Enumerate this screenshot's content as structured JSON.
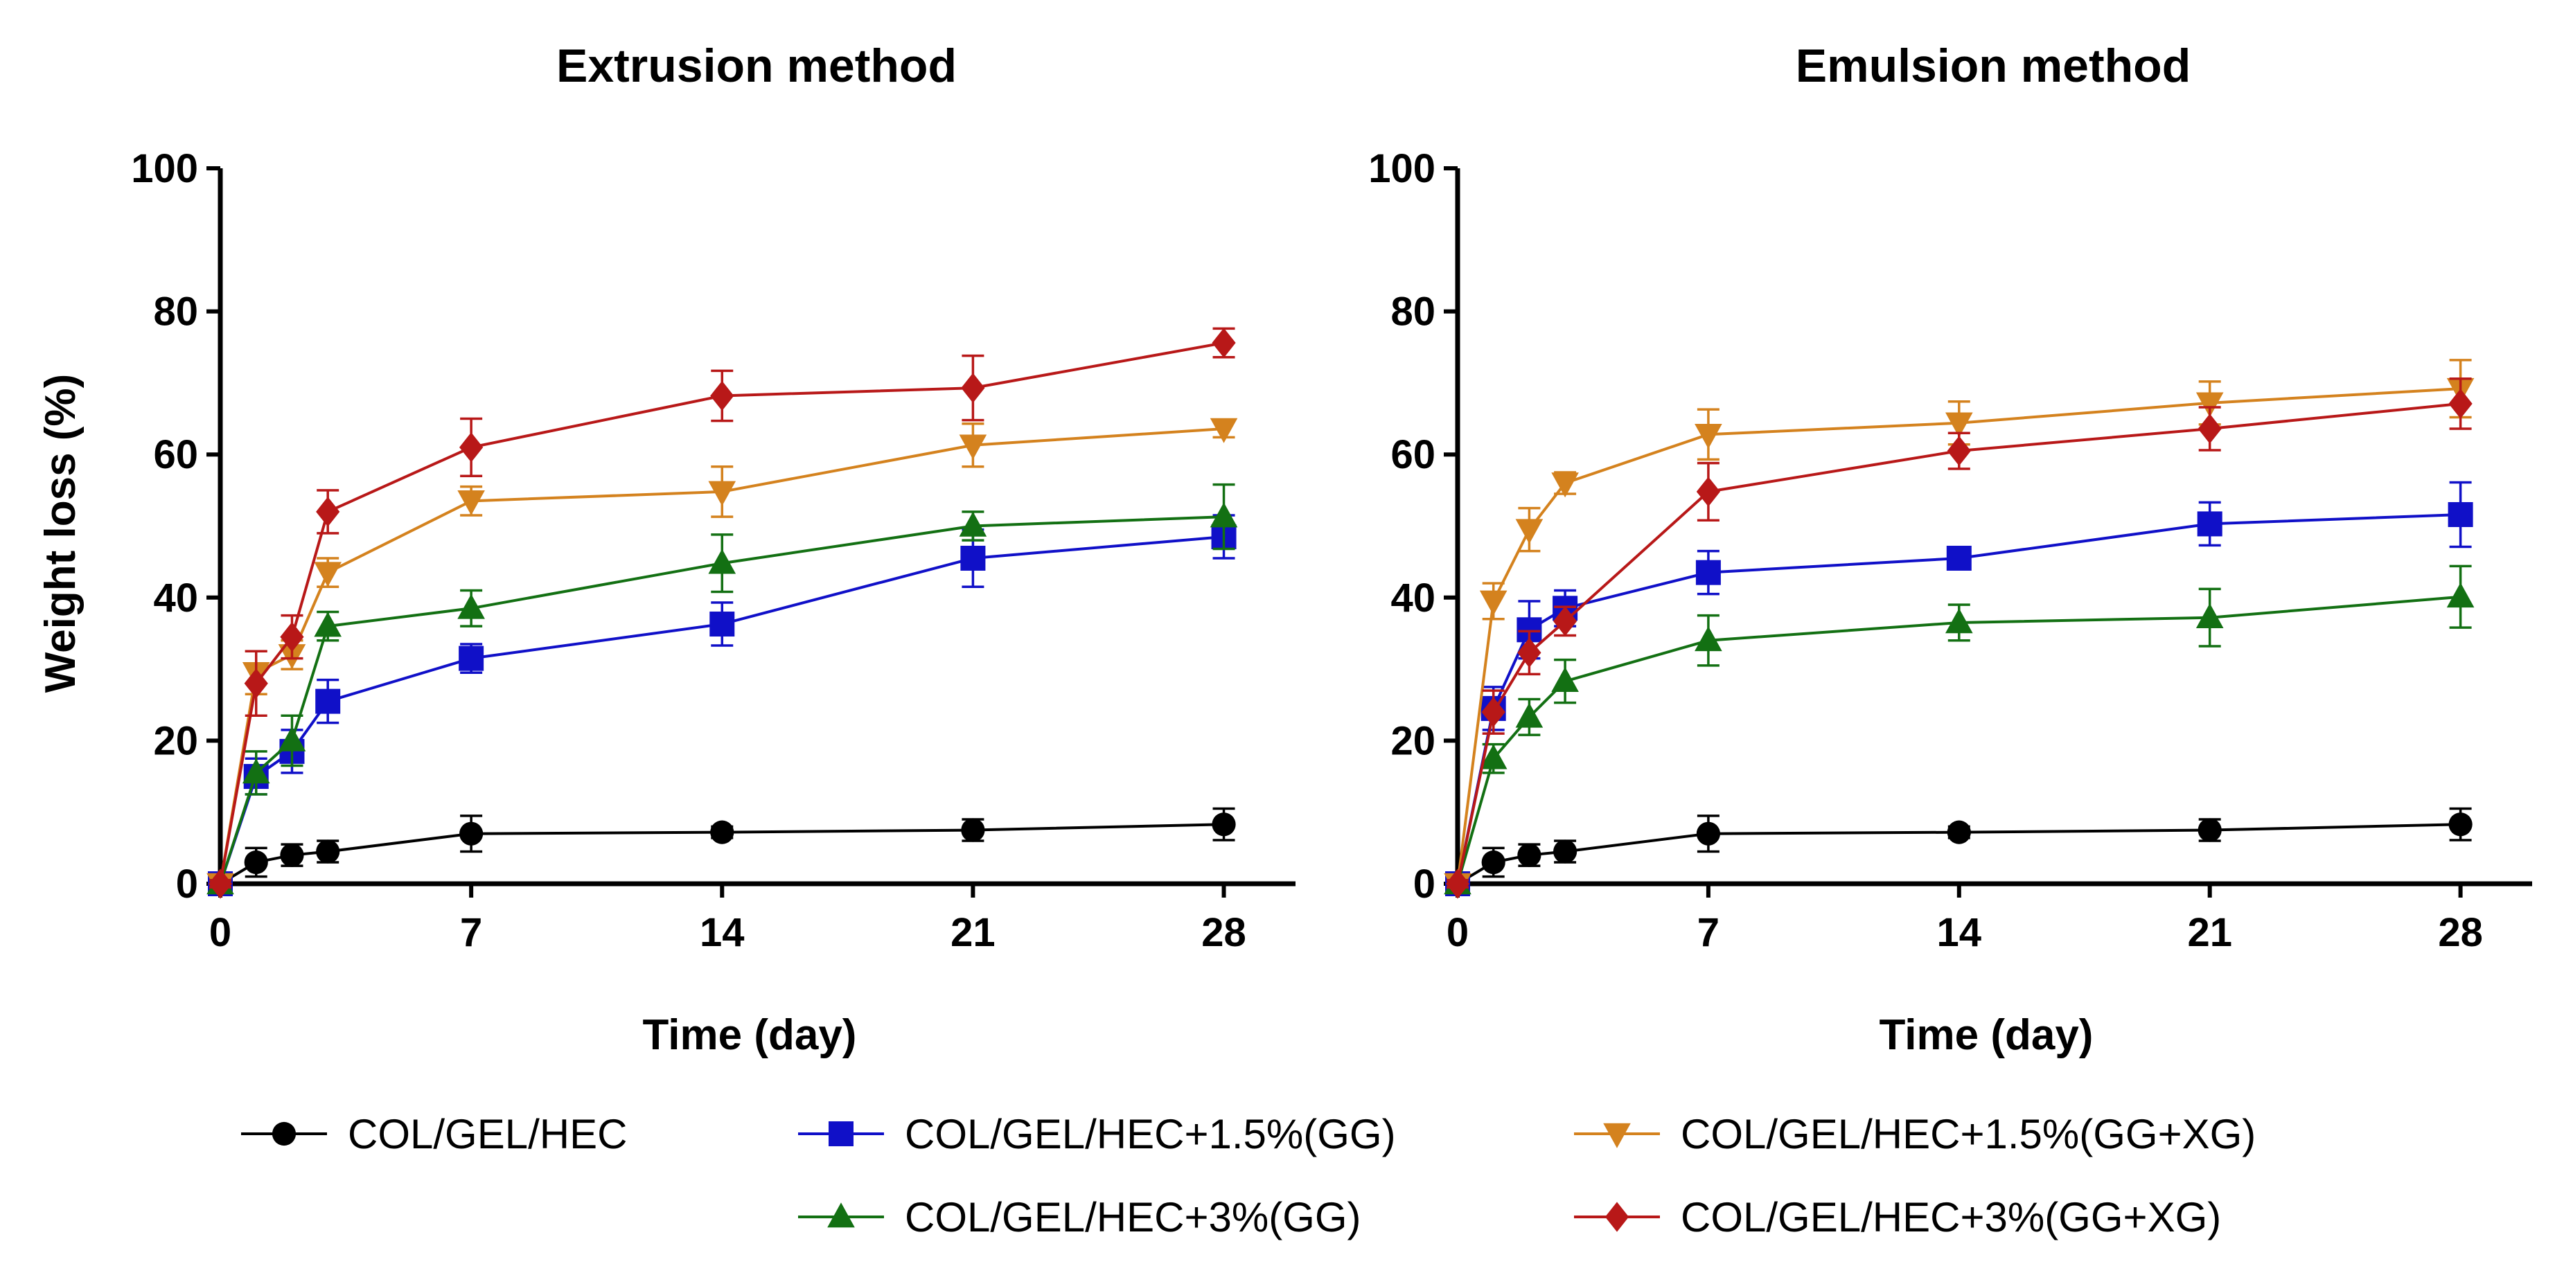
{
  "chart_data": [
    {
      "type": "line",
      "title": "Extrusion method",
      "xlabel": "Time (day)",
      "ylabel": "Weight loss (%)",
      "xlim": [
        0,
        30
      ],
      "ylim": [
        0,
        100
      ],
      "xticks": [
        0,
        7,
        14,
        21,
        28
      ],
      "yticks": [
        0,
        20,
        40,
        60,
        80,
        100
      ],
      "x": [
        0,
        1,
        2,
        3,
        7,
        14,
        21,
        28
      ],
      "series": [
        {
          "name": "COL/GEL/HEC",
          "color": "#000000",
          "marker": "circle",
          "values": [
            0,
            3,
            4,
            4.5,
            7,
            7.2,
            7.5,
            8.3
          ],
          "errors": [
            0.5,
            2,
            1.5,
            1.5,
            2.5,
            0.8,
            1.5,
            2.2
          ]
        },
        {
          "name": "COL/GEL/HEC+1.5%(GG)",
          "color": "#1010c8",
          "marker": "square",
          "values": [
            0,
            15,
            18.5,
            25.5,
            31.5,
            36.3,
            45.5,
            48.5
          ],
          "errors": [
            0.5,
            2.5,
            3,
            3,
            2,
            3,
            4,
            3
          ]
        },
        {
          "name": "COL/GEL/HEC+1.5%(GG+XG)",
          "color": "#d4821e",
          "marker": "triangle-down",
          "values": [
            0,
            29.5,
            32,
            43.5,
            53.5,
            54.8,
            61.3,
            63.6
          ],
          "errors": [
            0.5,
            3,
            2,
            2,
            2,
            3.5,
            3,
            1.2
          ]
        },
        {
          "name": "COL/GEL/HEC+3%(GG)",
          "color": "#137013",
          "marker": "triangle-up",
          "values": [
            0,
            15.5,
            20,
            36,
            38.5,
            44.8,
            50,
            51.3
          ],
          "errors": [
            0.5,
            3,
            3.5,
            2,
            2.5,
            4,
            2,
            4.5
          ]
        },
        {
          "name": "COL/GEL/HEC+3%(GG+XG)",
          "color": "#b81818",
          "marker": "diamond",
          "values": [
            0,
            28,
            34.5,
            52,
            61,
            68.2,
            69.3,
            75.6
          ],
          "errors": [
            0.5,
            4.5,
            3,
            3,
            4,
            3.5,
            4.5,
            2
          ]
        }
      ]
    },
    {
      "type": "line",
      "title": "Emulsion method",
      "xlabel": "Time (day)",
      "ylabel": "",
      "xlim": [
        0,
        30
      ],
      "ylim": [
        0,
        100
      ],
      "xticks": [
        0,
        7,
        14,
        21,
        28
      ],
      "yticks": [
        0,
        20,
        40,
        60,
        80,
        100
      ],
      "x": [
        0,
        1,
        2,
        3,
        7,
        14,
        21,
        28
      ],
      "series": [
        {
          "name": "COL/GEL/HEC",
          "color": "#000000",
          "marker": "circle",
          "values": [
            0,
            3,
            4,
            4.5,
            7,
            7.2,
            7.5,
            8.3
          ],
          "errors": [
            0.5,
            2,
            1.5,
            1.5,
            2.5,
            0.8,
            1.5,
            2.2
          ]
        },
        {
          "name": "COL/GEL/HEC+1.5%(GG)",
          "color": "#1010c8",
          "marker": "square",
          "values": [
            0,
            24.5,
            35.5,
            38.5,
            43.5,
            45.5,
            50.3,
            51.6
          ],
          "errors": [
            0.5,
            3,
            4,
            2.5,
            3,
            1.5,
            3,
            4.5
          ]
        },
        {
          "name": "COL/GEL/HEC+1.5%(GG+XG)",
          "color": "#d4821e",
          "marker": "triangle-down",
          "values": [
            0,
            39.5,
            49.5,
            56,
            62.8,
            64.4,
            67.2,
            69.2
          ],
          "errors": [
            0.5,
            2.5,
            3,
            1.5,
            3.5,
            3,
            3,
            4
          ]
        },
        {
          "name": "COL/GEL/HEC+3%(GG)",
          "color": "#137013",
          "marker": "triangle-up",
          "values": [
            0,
            17.5,
            23.3,
            28.3,
            34,
            36.5,
            37.2,
            40.1
          ],
          "errors": [
            0.5,
            2,
            2.5,
            3,
            3.5,
            2.5,
            4,
            4.3
          ]
        },
        {
          "name": "COL/GEL/HEC+3%(GG+XG)",
          "color": "#b81818",
          "marker": "diamond",
          "values": [
            0,
            24,
            32.3,
            36.7,
            54.8,
            60.5,
            63.6,
            67.1
          ],
          "errors": [
            0.5,
            3,
            3,
            2,
            4,
            2.5,
            3,
            3.5
          ]
        }
      ]
    }
  ],
  "legend": {
    "items": [
      {
        "label": "COL/GEL/HEC",
        "color": "#000000",
        "marker": "circle"
      },
      {
        "label": "COL/GEL/HEC+1.5%(GG)",
        "color": "#1010c8",
        "marker": "square"
      },
      {
        "label": "COL/GEL/HEC+1.5%(GG+XG)",
        "color": "#d4821e",
        "marker": "triangle-down"
      },
      {
        "label": "COL/GEL/HEC+3%(GG)",
        "color": "#137013",
        "marker": "triangle-up"
      },
      {
        "label": "COL/GEL/HEC+3%(GG+XG)",
        "color": "#b81818",
        "marker": "diamond"
      }
    ]
  }
}
